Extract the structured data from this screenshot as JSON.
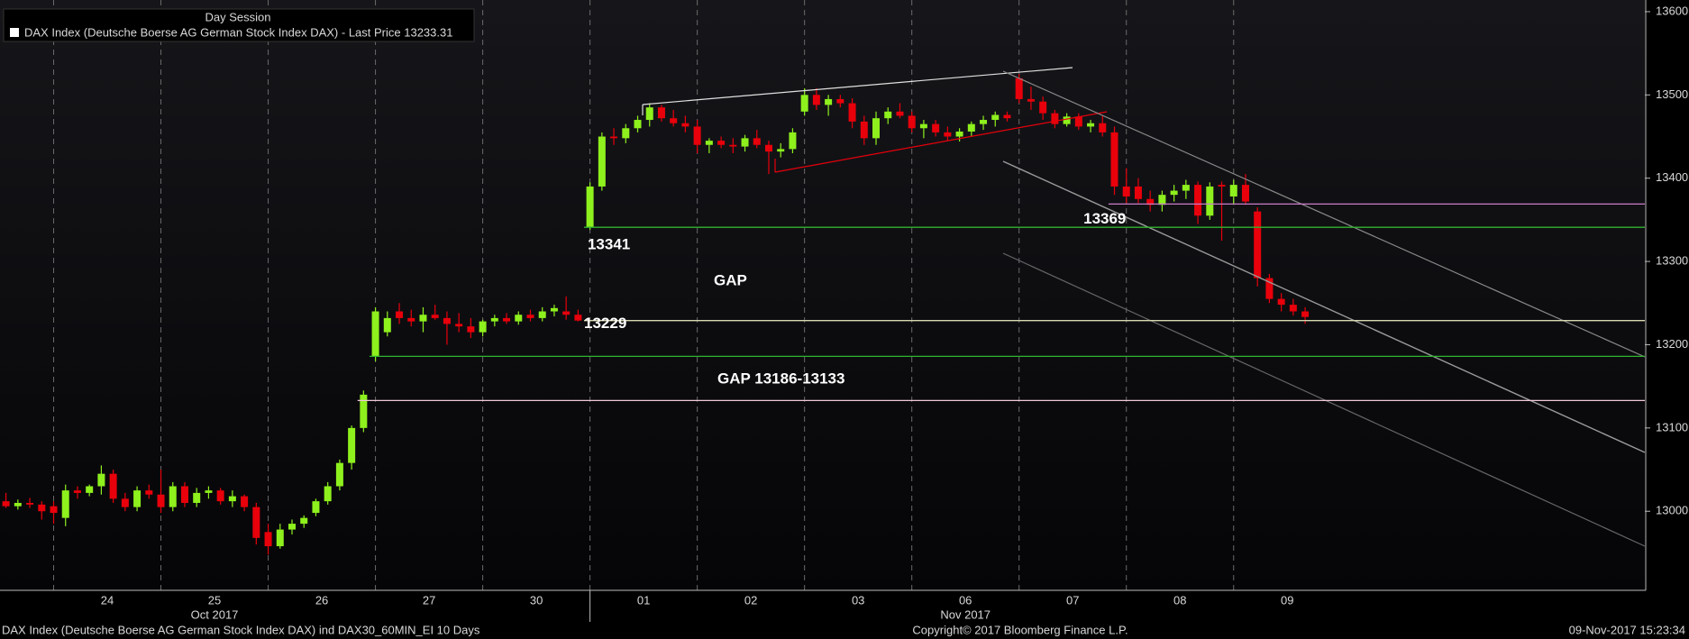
{
  "chart_data": {
    "type": "candlestick",
    "legend_title": "Day Session",
    "legend_entry": "DAX Index (Deutsche Boerse AG German Stock Index DAX) - Last Price 13233.31",
    "footer_left": "DAX Index (Deutsche Boerse AG German Stock Index DAX) ind DAX30_60MIN_EI 10 Days",
    "footer_center": "Copyright© 2017 Bloomberg Finance L.P.",
    "footer_right": "09-Nov-2017 15:23:34",
    "months": [
      {
        "value": 17.5,
        "label": "Oct 2017"
      },
      {
        "value": 80.5,
        "label": "Nov 2017"
      }
    ],
    "up_color": "#8ef01d",
    "down_color": "#e8000b",
    "xlim": [
      -0.5,
      137.5
    ],
    "xticks": [
      {
        "value": 8.5,
        "label": "24"
      },
      {
        "value": 17.5,
        "label": "25"
      },
      {
        "value": 26.5,
        "label": "26"
      },
      {
        "value": 35.5,
        "label": "27"
      },
      {
        "value": 44.5,
        "label": "30"
      },
      {
        "value": 53.5,
        "label": "01"
      },
      {
        "value": 62.5,
        "label": "02"
      },
      {
        "value": 71.5,
        "label": "03"
      },
      {
        "value": 80.5,
        "label": "06"
      },
      {
        "value": 89.5,
        "label": "07"
      },
      {
        "value": 98.5,
        "label": "08"
      },
      {
        "value": 107.5,
        "label": "09"
      }
    ],
    "ylim": [
      12905,
      13614
    ],
    "yticks": [
      13000,
      13100,
      13200,
      13300,
      13400,
      13500,
      13600
    ],
    "open": [
      13012,
      13006,
      13010,
      13008,
      13006,
      12992,
      13025,
      13022,
      13030,
      13045,
      13015,
      13005,
      13025,
      13020,
      13005,
      13030,
      13010,
      13022,
      13025,
      13012,
      13018,
      13005,
      12975,
      12958,
      12978,
      12985,
      12998,
      13012,
      13030,
      13058,
      13100,
      13186,
      13215,
      13240,
      13232,
      13228,
      13236,
      13232,
      13225,
      13222,
      13215,
      13228,
      13232,
      13228,
      13236,
      13232,
      13240,
      13240,
      13236,
      13341,
      13390,
      13450,
      13448,
      13460,
      13470,
      13485,
      13472,
      13466,
      13462,
      13440,
      13445,
      13440,
      13438,
      13448,
      13440,
      13432,
      13435,
      13480,
      13500,
      13488,
      13495,
      13490,
      13468,
      13448,
      13472,
      13480,
      13475,
      13460,
      13465,
      13455,
      13450,
      13456,
      13465,
      13470,
      13476,
      13520,
      13495,
      13492,
      13478,
      13465,
      13474,
      13462,
      13466,
      13455,
      13390,
      13390,
      13375,
      13368,
      13380,
      13385,
      13392,
      13355,
      13392,
      13378,
      13392,
      13360,
      13280,
      13255,
      13248,
      13240
    ],
    "high": [
      13022,
      13014,
      13016,
      13012,
      13012,
      13032,
      13030,
      13032,
      13055,
      13050,
      13022,
      13030,
      13032,
      13050,
      13035,
      13035,
      13028,
      13030,
      13028,
      13025,
      13020,
      13010,
      12985,
      12985,
      12990,
      12995,
      13015,
      13035,
      13062,
      13103,
      13145,
      13245,
      13240,
      13250,
      13242,
      13245,
      13248,
      13240,
      13238,
      13232,
      13230,
      13236,
      13238,
      13240,
      13242,
      13245,
      13248,
      13258,
      13242,
      13395,
      13455,
      13460,
      13465,
      13475,
      13490,
      13488,
      13482,
      13475,
      13470,
      13448,
      13450,
      13448,
      13452,
      13458,
      13445,
      13442,
      13460,
      13508,
      13508,
      13500,
      13500,
      13496,
      13475,
      13480,
      13485,
      13490,
      13480,
      13470,
      13470,
      13462,
      13460,
      13468,
      13475,
      13480,
      13480,
      13525,
      13510,
      13498,
      13482,
      13478,
      13478,
      13470,
      13475,
      13462,
      13412,
      13400,
      13385,
      13385,
      13392,
      13398,
      13396,
      13395,
      13396,
      13398,
      13405,
      13365,
      13285,
      13262,
      13255,
      13245
    ],
    "low": [
      13004,
      13002,
      13004,
      12990,
      12985,
      12982,
      13015,
      13018,
      13020,
      13010,
      13000,
      13000,
      13015,
      12998,
      13000,
      13005,
      13005,
      13015,
      13008,
      13005,
      13000,
      12960,
      12948,
      12955,
      12972,
      12980,
      12994,
      13008,
      13025,
      13050,
      13095,
      13180,
      13210,
      13225,
      13222,
      13215,
      13230,
      13200,
      13215,
      13208,
      13210,
      13222,
      13225,
      13224,
      13228,
      13228,
      13234,
      13230,
      13228,
      13338,
      13385,
      13440,
      13442,
      13455,
      13462,
      13468,
      13462,
      13455,
      13430,
      13430,
      13436,
      13430,
      13432,
      13436,
      13405,
      13425,
      13430,
      13475,
      13482,
      13475,
      13485,
      13460,
      13440,
      13440,
      13465,
      13472,
      13455,
      13448,
      13450,
      13445,
      13444,
      13450,
      13458,
      13462,
      13468,
      13490,
      13482,
      13470,
      13460,
      13462,
      13458,
      13455,
      13450,
      13380,
      13370,
      13370,
      13360,
      13360,
      13372,
      13375,
      13345,
      13350,
      13325,
      13368,
      13368,
      13270,
      13250,
      13240,
      13235,
      13225
    ],
    "close": [
      13006,
      13010,
      13008,
      13000,
      12998,
      13025,
      13022,
      13030,
      13045,
      13015,
      13005,
      13025,
      13020,
      13005,
      13030,
      13010,
      13022,
      13025,
      13012,
      13018,
      13005,
      12968,
      12958,
      12978,
      12985,
      12992,
      13012,
      13030,
      13058,
      13100,
      13140,
      13240,
      13232,
      13232,
      13228,
      13236,
      13232,
      13225,
      13222,
      13215,
      13228,
      13232,
      13228,
      13236,
      13232,
      13240,
      13244,
      13236,
      13229,
      13390,
      13450,
      13448,
      13460,
      13470,
      13485,
      13472,
      13466,
      13462,
      13440,
      13445,
      13440,
      13438,
      13448,
      13440,
      13432,
      13435,
      13455,
      13500,
      13488,
      13495,
      13490,
      13468,
      13448,
      13472,
      13480,
      13475,
      13460,
      13465,
      13455,
      13450,
      13456,
      13465,
      13470,
      13476,
      13472,
      13495,
      13492,
      13478,
      13465,
      13474,
      13462,
      13466,
      13455,
      13390,
      13378,
      13375,
      13368,
      13380,
      13385,
      13392,
      13355,
      13390,
      13390,
      13392,
      13372,
      13280,
      13255,
      13248,
      13240,
      13233.31
    ],
    "levels": [
      13341,
      13229,
      13369
    ],
    "gap_levels": [
      13186,
      13133
    ],
    "gap_label": "GAP",
    "gap_range_label": "GAP 13186-13133"
  }
}
